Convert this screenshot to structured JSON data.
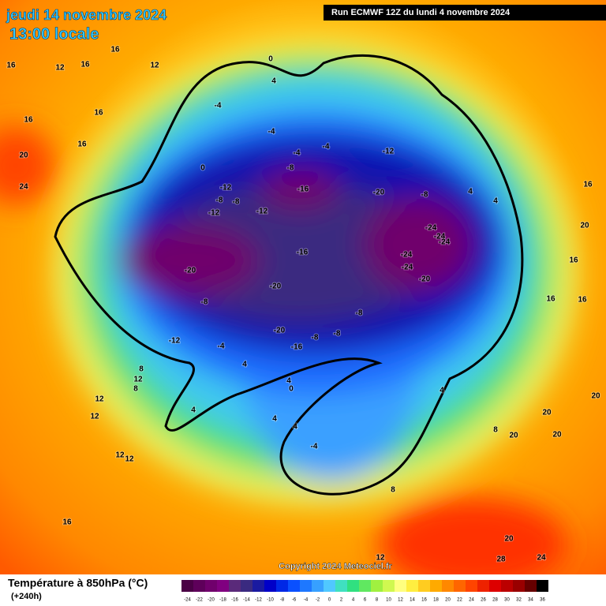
{
  "header": {
    "date": "jeudi 14 novembre 2024",
    "time": "13:00 locale",
    "run": "Run ECMWF 12Z du lundi 4 novembre 2024"
  },
  "footer": {
    "title": "Température à 850hPa (°C)",
    "lead": "(+240h)",
    "copyright": "Copyright 2024 Meteociel.fr"
  },
  "legend": {
    "ticks": [
      -24,
      -22,
      -20,
      -18,
      -16,
      -14,
      -12,
      -10,
      -8,
      -6,
      -4,
      -2,
      0,
      2,
      4,
      6,
      8,
      10,
      12,
      14,
      16,
      18,
      20,
      22,
      24,
      26,
      28,
      30,
      32,
      34,
      36
    ],
    "colors": [
      "#4a0045",
      "#5e005a",
      "#70006c",
      "#800080",
      "#5a2a7a",
      "#3a2a80",
      "#1a1aa0",
      "#0000c8",
      "#0028e6",
      "#0a50ff",
      "#1e78ff",
      "#37a0ff",
      "#50c8ff",
      "#40e0c0",
      "#30e080",
      "#60e860",
      "#a0f040",
      "#d0f850",
      "#ffff80",
      "#ffee40",
      "#ffcc20",
      "#ffaa00",
      "#ff8800",
      "#ff6600",
      "#ff4400",
      "#ee2200",
      "#dd0000",
      "#bb0000",
      "#990000",
      "#660000",
      "#000000"
    ]
  },
  "map_labels": [
    "16",
    "12",
    "16",
    "16",
    "12",
    "16",
    "16",
    "16",
    "20",
    "24",
    "0",
    "4",
    "-4",
    "-4",
    "-4",
    "-4",
    "-12",
    "-8",
    "0",
    "-12",
    "-16",
    "-20",
    "-8",
    "4",
    "4",
    "16",
    "-8",
    "-8",
    "-12",
    "-12",
    "-24",
    "-24",
    "-24",
    "20",
    "-16",
    "-24",
    "16",
    "-20",
    "-24",
    "-20",
    "-20",
    "16",
    "16",
    "-8",
    "-8",
    "-20",
    "-8",
    "-8",
    "-12",
    "-4",
    "-16",
    "8",
    "4",
    "12",
    "8",
    "4",
    "0",
    "12",
    "4",
    "12",
    "20",
    "20",
    "4",
    "4",
    "4",
    "8",
    "20",
    "20",
    "12",
    "12",
    "-4",
    "8",
    "16",
    "20",
    "28",
    "24",
    "12"
  ]
}
